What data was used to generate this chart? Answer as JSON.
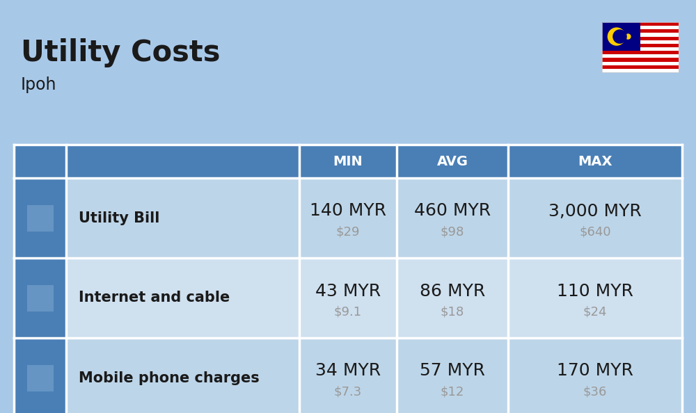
{
  "title": "Utility Costs",
  "subtitle": "Ipoh",
  "background_color": "#a8c8e8",
  "header_color": "#4a7fb5",
  "header_text_color": "#ffffff",
  "row_color_1": "#bdd5e8",
  "row_color_2": "#cfe0ef",
  "icon_col_color": "#a8c8e8",
  "border_color": "#ffffff",
  "text_color_dark": "#1a1a1a",
  "text_color_usd": "#999999",
  "col_headers": [
    "MIN",
    "AVG",
    "MAX"
  ],
  "rows": [
    {
      "label": "Utility Bill",
      "min_myr": "140 MYR",
      "min_usd": "$29",
      "avg_myr": "460 MYR",
      "avg_usd": "$98",
      "max_myr": "3,000 MYR",
      "max_usd": "$640"
    },
    {
      "label": "Internet and cable",
      "min_myr": "43 MYR",
      "min_usd": "$9.1",
      "avg_myr": "86 MYR",
      "avg_usd": "$18",
      "max_myr": "110 MYR",
      "max_usd": "$24"
    },
    {
      "label": "Mobile phone charges",
      "min_myr": "34 MYR",
      "min_usd": "$7.3",
      "avg_myr": "57 MYR",
      "avg_usd": "$12",
      "max_myr": "170 MYR",
      "max_usd": "$36"
    }
  ],
  "title_fontsize": 30,
  "subtitle_fontsize": 17,
  "header_fontsize": 14,
  "cell_myr_fontsize": 18,
  "cell_usd_fontsize": 13,
  "label_fontsize": 15,
  "fig_width": 10.0,
  "fig_height": 5.94
}
